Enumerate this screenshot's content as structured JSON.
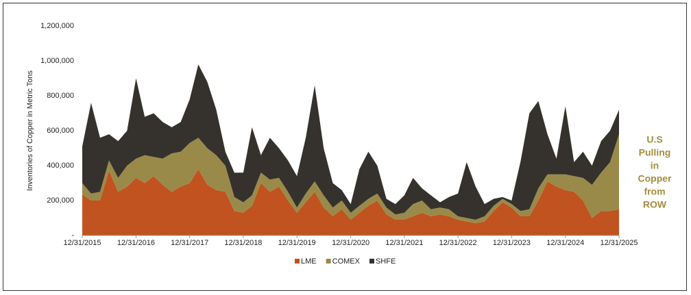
{
  "chart_data": {
    "type": "stacked_area",
    "y_label": "Inventories of Copper in Metric Tons",
    "annotation": [
      "U.S",
      "Pulling",
      "in",
      "Copper",
      "from",
      "ROW"
    ],
    "x": [
      "12/31/2015",
      "02/29/2016",
      "04/30/2016",
      "06/30/2016",
      "08/31/2016",
      "10/31/2016",
      "12/31/2016",
      "02/28/2017",
      "04/30/2017",
      "06/30/2017",
      "08/31/2017",
      "10/31/2017",
      "12/31/2017",
      "02/28/2018",
      "04/30/2018",
      "06/30/2018",
      "08/31/2018",
      "10/31/2018",
      "12/31/2018",
      "02/28/2019",
      "04/30/2019",
      "06/30/2019",
      "08/31/2019",
      "10/31/2019",
      "12/31/2019",
      "02/29/2020",
      "04/30/2020",
      "06/30/2020",
      "08/31/2020",
      "10/31/2020",
      "12/31/2020",
      "02/28/2021",
      "04/30/2021",
      "06/30/2021",
      "08/31/2021",
      "10/31/2021",
      "12/31/2021",
      "02/28/2022",
      "04/30/2022",
      "06/30/2022",
      "08/31/2022",
      "10/31/2022",
      "12/31/2022",
      "02/28/2023",
      "04/30/2023",
      "06/30/2023",
      "08/31/2023",
      "10/31/2023",
      "12/31/2023",
      "02/29/2024",
      "04/30/2024",
      "06/30/2024",
      "08/31/2024",
      "10/31/2024",
      "12/31/2024",
      "02/28/2025",
      "04/30/2025",
      "06/30/2025",
      "08/31/2025",
      "10/31/2025",
      "12/31/2025"
    ],
    "xlim": [
      "12/31/2015",
      "12/31/2025"
    ],
    "xticks": [
      "12/31/2015",
      "12/31/2016",
      "12/31/2017",
      "12/31/2018",
      "12/31/2019",
      "12/31/2020",
      "12/31/2021",
      "12/31/2022",
      "12/31/2023",
      "12/31/2024",
      "12/31/2025"
    ],
    "ylim": [
      0,
      1200000
    ],
    "yticks": [
      {
        "value": 0,
        "label": "-"
      },
      {
        "value": 200000,
        "label": "200,000"
      },
      {
        "value": 400000,
        "label": "400,000"
      },
      {
        "value": 600000,
        "label": "600,000"
      },
      {
        "value": 800000,
        "label": "800,000"
      },
      {
        "value": 1000000,
        "label": "1,000,000"
      },
      {
        "value": 1200000,
        "label": "1,200,000"
      }
    ],
    "legend": "bottom",
    "series": [
      {
        "name": "LME",
        "color": "#c0531f",
        "values": [
          235000,
          200000,
          200000,
          370000,
          250000,
          280000,
          330000,
          300000,
          340000,
          290000,
          250000,
          280000,
          300000,
          380000,
          290000,
          260000,
          250000,
          140000,
          130000,
          170000,
          300000,
          250000,
          280000,
          200000,
          130000,
          190000,
          250000,
          160000,
          110000,
          150000,
          90000,
          130000,
          170000,
          200000,
          120000,
          90000,
          90000,
          110000,
          130000,
          110000,
          120000,
          110000,
          90000,
          80000,
          70000,
          80000,
          140000,
          190000,
          160000,
          110000,
          110000,
          200000,
          310000,
          280000,
          260000,
          250000,
          200000,
          100000,
          140000,
          140000,
          150000
        ]
      },
      {
        "name": "COMEX",
        "color": "#9a8a4a",
        "values": [
          65000,
          40000,
          50000,
          60000,
          80000,
          120000,
          110000,
          160000,
          110000,
          150000,
          220000,
          200000,
          230000,
          180000,
          210000,
          200000,
          150000,
          80000,
          60000,
          60000,
          60000,
          70000,
          50000,
          50000,
          30000,
          50000,
          60000,
          70000,
          50000,
          50000,
          40000,
          40000,
          40000,
          40000,
          40000,
          30000,
          40000,
          70000,
          70000,
          40000,
          40000,
          40000,
          20000,
          20000,
          20000,
          30000,
          30000,
          20000,
          20000,
          30000,
          40000,
          70000,
          40000,
          70000,
          90000,
          90000,
          130000,
          190000,
          220000,
          280000,
          430000
        ]
      },
      {
        "name": "SHFE",
        "color": "#35322d",
        "values": [
          210000,
          520000,
          310000,
          150000,
          210000,
          200000,
          460000,
          220000,
          250000,
          210000,
          150000,
          170000,
          250000,
          420000,
          380000,
          260000,
          80000,
          140000,
          170000,
          390000,
          100000,
          240000,
          170000,
          180000,
          180000,
          320000,
          550000,
          270000,
          140000,
          60000,
          50000,
          210000,
          270000,
          160000,
          50000,
          60000,
          100000,
          150000,
          70000,
          80000,
          30000,
          70000,
          130000,
          320000,
          190000,
          70000,
          40000,
          10000,
          20000,
          280000,
          550000,
          500000,
          230000,
          90000,
          390000,
          80000,
          150000,
          110000,
          180000,
          180000,
          140000
        ]
      }
    ]
  }
}
